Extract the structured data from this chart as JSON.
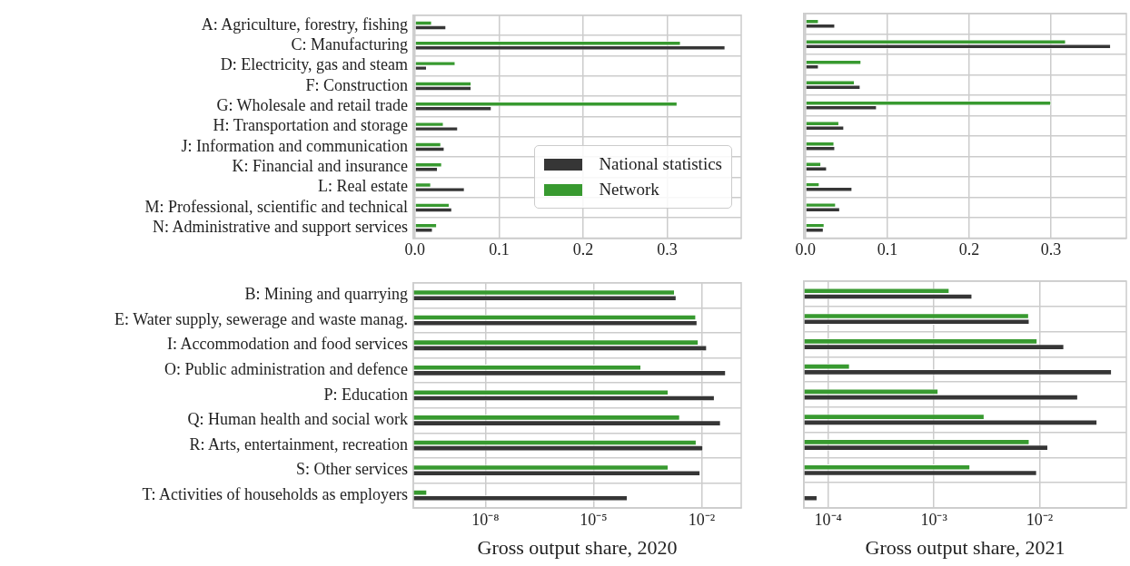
{
  "chart_data": [
    {
      "type": "bar",
      "orientation": "horizontal",
      "categories": [
        "A: Agriculture, forestry, fishing",
        "C: Manufacturing",
        "D: Electricity, gas and steam",
        "F: Construction",
        "G: Wholesale and retail trade",
        "H: Transportation and storage",
        "J: Information and communication",
        "K: Financial and insurance",
        "L: Real estate",
        "M: Professional, scientific and technical",
        "N: Administrative and support services"
      ],
      "series": [
        {
          "name": "National statistics",
          "color": "#363636",
          "values": [
            0.037,
            0.369,
            0.014,
            0.067,
            0.091,
            0.051,
            0.035,
            0.027,
            0.059,
            0.044,
            0.021
          ]
        },
        {
          "name": "Network",
          "color": "#389a30",
          "values": [
            0.02,
            0.316,
            0.048,
            0.067,
            0.312,
            0.034,
            0.031,
            0.032,
            0.019,
            0.041,
            0.026
          ]
        }
      ],
      "xlim": [
        -0.002,
        0.388
      ],
      "xticks": [
        {
          "value": 0,
          "label": "0.0"
        },
        0.1,
        0.2,
        0.3
      ],
      "grid": true,
      "legend": "bottom right"
    },
    {
      "type": "bar",
      "orientation": "horizontal",
      "categories": [
        null,
        null,
        null,
        null,
        null,
        null,
        null,
        null,
        null,
        null,
        null
      ],
      "series": [
        {
          "color": "#363636",
          "values": [
            0.036,
            0.373,
            0.016,
            0.067,
            0.087,
            0.047,
            0.036,
            0.026,
            0.057,
            0.042,
            0.022
          ]
        },
        {
          "color": "#389a30",
          "values": [
            0.016,
            0.318,
            0.068,
            0.06,
            0.3,
            0.041,
            0.035,
            0.019,
            0.017,
            0.037,
            0.023
          ]
        }
      ],
      "xlim": [
        -0.002,
        0.392
      ],
      "xticks": [
        {
          "value": 0,
          "label": "0.0"
        },
        0.1,
        0.2,
        0.3
      ],
      "grid": true,
      "tick_labels": "x"
    },
    {
      "type": "bar",
      "orientation": "horizontal",
      "log": "x",
      "categories": [
        "B: Mining and quarrying",
        "E: Water supply, sewerage and waste manag.",
        "I: Accommodation and food services",
        "O: Public administration and defence",
        "P: Education",
        "Q: Human health and social work",
        "R: Arts, entertainment, recreation",
        "S: Other services",
        "T: Activities of households as employers"
      ],
      "series": [
        {
          "color": "#363636",
          "values": [
            0.002,
            0.0076,
            0.014,
            0.047,
            0.023,
            0.034,
            0.011,
            0.0092,
            8.8e-05
          ]
        },
        {
          "color": "#389a30",
          "values": [
            0.0018,
            0.007,
            0.0082,
            0.00021,
            0.0012,
            0.0025,
            0.0072,
            0.0012,
            2.4e-10
          ]
        }
      ],
      "xlim": [
        1e-10,
        0.126
      ],
      "xticks": [
        {
          "value": 1e-08,
          "label": "10⁻⁸"
        },
        {
          "value": 1e-05,
          "label": "10⁻⁵"
        },
        {
          "value": 0.01,
          "label": "10⁻²"
        }
      ],
      "grid": true,
      "xlabel": "Gross output share, 2020"
    },
    {
      "type": "bar",
      "orientation": "horizontal",
      "log": "x",
      "categories": [
        null,
        null,
        null,
        null,
        null,
        null,
        null,
        null,
        null
      ],
      "series": [
        {
          "color": "#363636",
          "values": [
            0.0023,
            0.008,
            0.017,
            0.048,
            0.023,
            0.035,
            0.012,
            0.0094,
            7.9e-05
          ]
        },
        {
          "color": "#389a30",
          "values": [
            0.0014,
            0.0079,
            0.0095,
            0.00016,
            0.0011,
            0.003,
            0.008,
            0.0022,
            null
          ]
        }
      ],
      "xlim": [
        5.9e-05,
        0.066
      ],
      "xticks": [
        {
          "value": 0.0001,
          "label": "10⁻⁴"
        },
        {
          "value": 0.001,
          "label": "10⁻³"
        },
        {
          "value": 0.01,
          "label": "10⁻²"
        }
      ],
      "grid": true,
      "tick_labels": "x",
      "xlabel": "Gross output share, 2021"
    }
  ]
}
